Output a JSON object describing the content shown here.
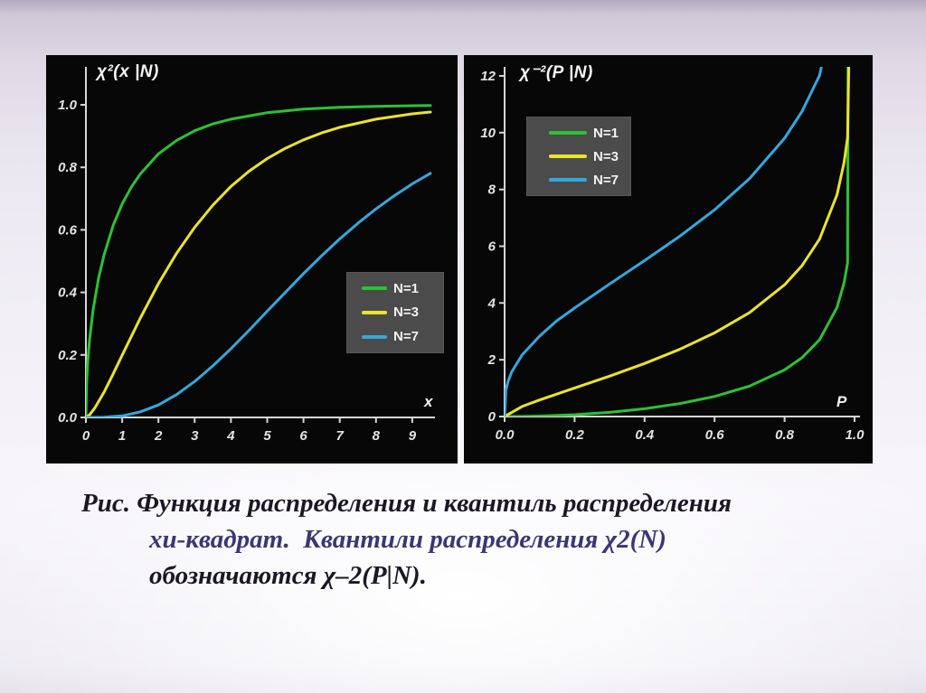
{
  "caption": {
    "line1": "Рис. Функция распределения и квантиль распределения",
    "line2": "хи-квадрат.  Квантили распределения χ2(N)",
    "line3": "обозначаются χ–2(P|N)."
  },
  "colors": {
    "green": "#2cc234",
    "yellow": "#ece32b",
    "cyan": "#35a8dc",
    "axis": "#d6d6d6",
    "panel_bg": "#070707",
    "legend_bg": "#4b4b4b",
    "caption_text": "#1b1724",
    "caption_accent": "#3b3673",
    "slide_bg": "#e9e5ef"
  },
  "chart_data": [
    {
      "type": "line",
      "title": "χ²(x |N)",
      "xlabel": "x",
      "ylabel": "",
      "xlim": [
        0,
        9.5
      ],
      "ylim": [
        0,
        1.0
      ],
      "grid": false,
      "legend_position": "right-middle",
      "xticks": {
        "values": [
          0,
          1,
          2,
          3,
          4,
          5,
          6,
          7,
          8,
          9
        ],
        "labels": [
          "0",
          "1",
          "2",
          "3",
          "4",
          "5",
          "6",
          "7",
          "8",
          "9"
        ]
      },
      "yticks": {
        "values": [
          0,
          0.2,
          0.4,
          0.6,
          0.8,
          1.0
        ],
        "labels": [
          "0.0",
          "0.2",
          "0.4",
          "0.6",
          "0.8",
          "1.0"
        ]
      },
      "series": [
        {
          "name": "N=1",
          "color": "#2cc234",
          "x": [
            0,
            0.02,
            0.05,
            0.1,
            0.2,
            0.35,
            0.5,
            0.75,
            1,
            1.25,
            1.5,
            2,
            2.5,
            3,
            3.5,
            4,
            5,
            6,
            7,
            8,
            9,
            9.5
          ],
          "y": [
            0,
            0.112,
            0.177,
            0.248,
            0.345,
            0.446,
            0.52,
            0.614,
            0.683,
            0.736,
            0.779,
            0.843,
            0.886,
            0.917,
            0.939,
            0.954,
            0.975,
            0.986,
            0.992,
            0.995,
            0.997,
            0.998
          ]
        },
        {
          "name": "N=3",
          "color": "#ece32b",
          "x": [
            0,
            0.1,
            0.25,
            0.5,
            0.75,
            1,
            1.5,
            2,
            2.5,
            3,
            3.5,
            4,
            4.5,
            5,
            5.5,
            6,
            6.5,
            7,
            8,
            9,
            9.5
          ],
          "y": [
            0,
            0.008,
            0.031,
            0.081,
            0.139,
            0.199,
            0.318,
            0.428,
            0.525,
            0.608,
            0.679,
            0.739,
            0.788,
            0.828,
            0.861,
            0.888,
            0.91,
            0.928,
            0.954,
            0.971,
            0.977
          ]
        },
        {
          "name": "N=7",
          "color": "#35a8dc",
          "x": [
            0,
            0.5,
            1,
            1.5,
            2,
            2.5,
            3,
            3.5,
            4,
            4.5,
            5,
            5.5,
            6,
            6.5,
            7,
            7.5,
            8,
            8.5,
            9,
            9.5
          ],
          "y": [
            0,
            0.001,
            0.005,
            0.018,
            0.04,
            0.073,
            0.115,
            0.165,
            0.22,
            0.279,
            0.34,
            0.4,
            0.46,
            0.517,
            0.571,
            0.621,
            0.667,
            0.709,
            0.747,
            0.781
          ]
        }
      ]
    },
    {
      "type": "line",
      "title": "χ⁻²(P |N)",
      "xlabel": "P",
      "ylabel": "",
      "xlim": [
        0,
        1.0
      ],
      "ylim": [
        0,
        12
      ],
      "grid": false,
      "legend_position": "upper-left",
      "xticks": {
        "values": [
          0,
          0.2,
          0.4,
          0.6,
          0.8,
          1.0
        ],
        "labels": [
          "0.0",
          "0.2",
          "0.4",
          "0.6",
          "0.8",
          "1.0"
        ]
      },
      "yticks": {
        "values": [
          0,
          2,
          4,
          6,
          8,
          10,
          12
        ],
        "labels": [
          "0",
          "2",
          "4",
          "6",
          "8",
          "10",
          "12"
        ]
      },
      "series": [
        {
          "name": "N=1",
          "color": "#2cc234",
          "x": [
            0,
            0.05,
            0.1,
            0.2,
            0.3,
            0.4,
            0.5,
            0.6,
            0.7,
            0.8,
            0.85,
            0.9,
            0.95,
            0.97,
            0.98,
            0.9815
          ],
          "y": [
            0,
            0.004,
            0.016,
            0.064,
            0.148,
            0.275,
            0.455,
            0.708,
            1.074,
            1.642,
            2.072,
            2.706,
            3.841,
            4.709,
            5.412,
            12.3
          ]
        },
        {
          "name": "N=3",
          "color": "#ece32b",
          "x": [
            0,
            0.05,
            0.1,
            0.2,
            0.3,
            0.4,
            0.5,
            0.6,
            0.7,
            0.8,
            0.85,
            0.9,
            0.95,
            0.97,
            0.98,
            0.9835
          ],
          "y": [
            0,
            0.352,
            0.584,
            1.005,
            1.424,
            1.869,
            2.366,
            2.946,
            3.665,
            4.642,
            5.317,
            6.251,
            7.815,
            8.947,
            9.837,
            12.3
          ]
        },
        {
          "name": "N=7",
          "color": "#35a8dc",
          "x": [
            0,
            0.004,
            0.01,
            0.02,
            0.05,
            0.1,
            0.15,
            0.2,
            0.3,
            0.4,
            0.5,
            0.6,
            0.7,
            0.8,
            0.85,
            0.9,
            0.905
          ],
          "y": [
            0,
            0.935,
            1.239,
            1.564,
            2.167,
            2.833,
            3.38,
            3.822,
            4.671,
            5.493,
            6.346,
            7.283,
            8.383,
            9.803,
            10.748,
            12.017,
            12.3
          ]
        }
      ]
    }
  ]
}
